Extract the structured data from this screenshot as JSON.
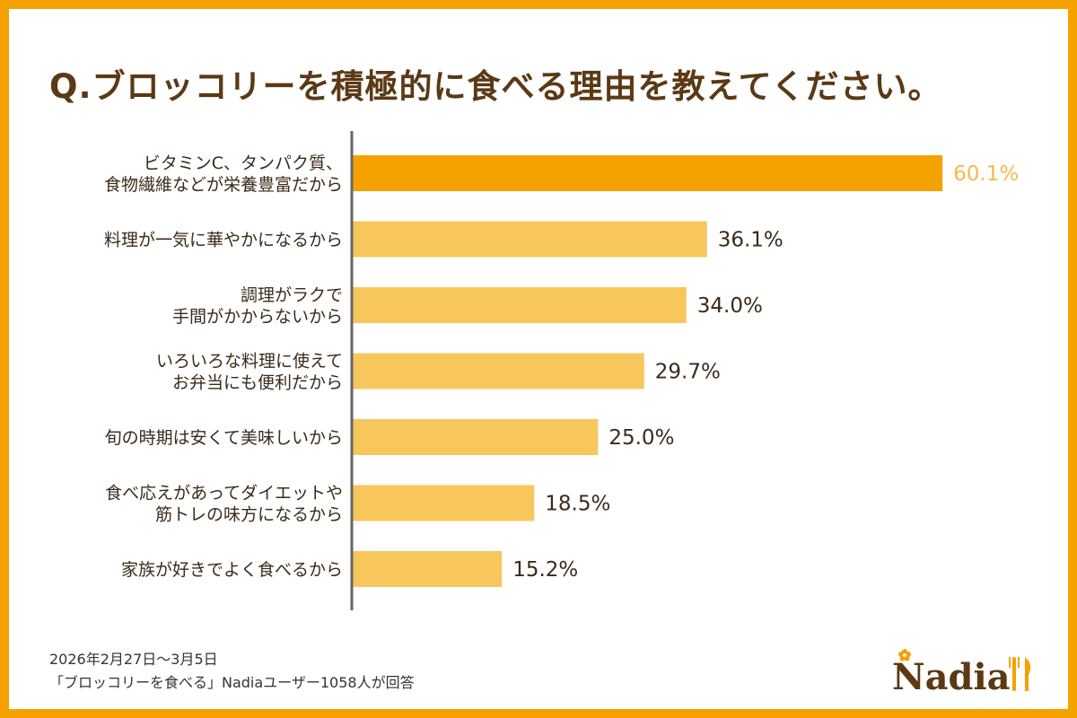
{
  "title": "Q.ブロッコリーを積極的に食べる理由を教えてください。",
  "colors": {
    "frame": "#f5a200",
    "highlight_bar": "#f5a200",
    "bar": "#f7c75c",
    "highlight_value": "#f5b94a",
    "value": "#3b2a1a",
    "axis": "#666666",
    "title": "#5a3914"
  },
  "chart_data": {
    "type": "bar",
    "orientation": "horizontal",
    "title": "Q.ブロッコリーを積極的に食べる理由を教えてください。",
    "categories": [
      [
        "ビタミンC、タンパク質、",
        "食物繊維などが栄養豊富だから"
      ],
      [
        "料理が一気に華やかになるから"
      ],
      [
        "調理がラクで",
        "手間がかからないから"
      ],
      [
        "いろいろな料理に使えて",
        "お弁当にも便利だから"
      ],
      [
        "旬の時期は安くて美味しいから"
      ],
      [
        "食べ応えがあってダイエットや",
        "筋トレの味方になるから"
      ],
      [
        "家族が好きでよく食べるから"
      ]
    ],
    "values": [
      60.1,
      36.1,
      34.0,
      29.7,
      25.0,
      18.5,
      15.2
    ],
    "value_labels": [
      "60.1%",
      "36.1%",
      "34.0%",
      "29.7%",
      "25.0%",
      "18.5%",
      "15.2%"
    ],
    "unit": "%",
    "xlim": [
      0,
      61
    ],
    "highlight_index": 0
  },
  "footer": {
    "date": "2026年2月27日～3月5日",
    "source": "「ブロッコリーを食べる」Nadiaユーザー1058人が回答"
  },
  "logo": {
    "text": "Nadia"
  }
}
